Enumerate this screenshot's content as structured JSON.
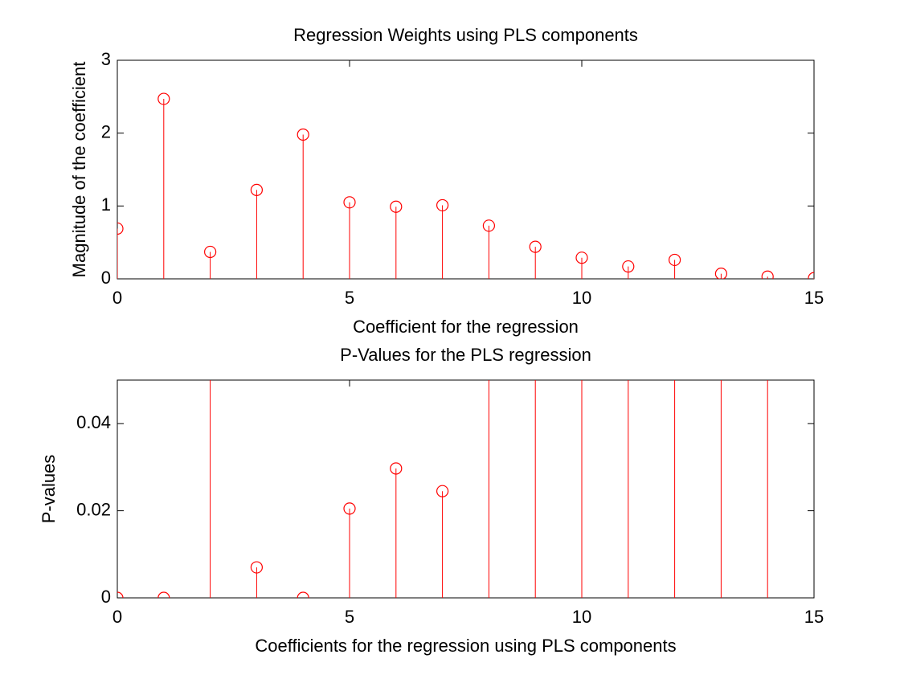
{
  "chart_data": [
    {
      "type": "stem",
      "title": "Regression Weights using PLS components",
      "xlabel": "Coefficient for the regression",
      "ylabel": "Magnitude of the coefficient",
      "x": [
        0,
        1,
        2,
        3,
        4,
        5,
        6,
        7,
        8,
        9,
        10,
        11,
        12,
        13,
        14,
        15
      ],
      "values": [
        0.69,
        2.47,
        0.37,
        1.22,
        1.98,
        1.05,
        0.99,
        1.01,
        0.73,
        0.44,
        0.29,
        0.17,
        0.26,
        0.07,
        0.03,
        0.01
      ],
      "color": "#ff0000",
      "xlim": [
        0,
        15
      ],
      "ylim": [
        0,
        3
      ],
      "xticks": [
        0,
        5,
        10,
        15
      ],
      "yticks": [
        0,
        1,
        2,
        3
      ]
    },
    {
      "type": "stem",
      "title": "P-Values for the PLS regression",
      "xlabel": "Coefficients for the regression using PLS components",
      "ylabel": "P-values",
      "x": [
        0,
        1,
        2,
        3,
        4,
        5,
        6,
        7,
        8,
        9,
        10,
        11,
        12,
        13,
        14
      ],
      "values": [
        0,
        0,
        0.06,
        0.007,
        0,
        0.0205,
        0.0297,
        0.0245,
        0.06,
        0.06,
        0.06,
        0.06,
        0.06,
        0.06,
        0.06
      ],
      "color": "#ff0000",
      "xlim": [
        0,
        15
      ],
      "ylim": [
        0,
        0.05
      ],
      "xticks": [
        0,
        5,
        10,
        15
      ],
      "yticks": [
        0,
        0.02,
        0.04
      ]
    }
  ]
}
